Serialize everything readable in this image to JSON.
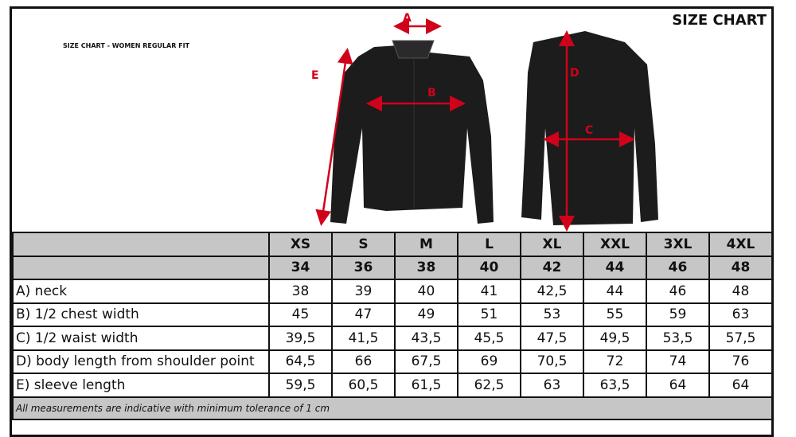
{
  "subtitle": "SIZE CHART - WOMEN REGULAR FIT",
  "title": "SIZE CHART",
  "measure_letters": {
    "a": "A",
    "b": "B",
    "c": "C",
    "d": "D",
    "e": "E"
  },
  "colors": {
    "arrow": "#d0021b",
    "header_bg": "#c6c6c6",
    "shirt": "#1c1c1c"
  },
  "table": {
    "sizes": [
      "XS",
      "S",
      "M",
      "L",
      "XL",
      "XXL",
      "3XL",
      "4XL"
    ],
    "numeric_sizes": [
      "34",
      "36",
      "38",
      "40",
      "42",
      "44",
      "46",
      "48"
    ],
    "rows": [
      {
        "label": "A) neck",
        "values": [
          "38",
          "39",
          "40",
          "41",
          "42,5",
          "44",
          "46",
          "48"
        ]
      },
      {
        "label": "B) 1/2 chest width",
        "values": [
          "45",
          "47",
          "49",
          "51",
          "53",
          "55",
          "59",
          "63"
        ]
      },
      {
        "label": "C) 1/2 waist width",
        "values": [
          "39,5",
          "41,5",
          "43,5",
          "45,5",
          "47,5",
          "49,5",
          "53,5",
          "57,5"
        ]
      },
      {
        "label": "D) body length from shoulder point",
        "values": [
          "64,5",
          "66",
          "67,5",
          "69",
          "70,5",
          "72",
          "74",
          "76"
        ]
      },
      {
        "label": "E) sleeve length",
        "values": [
          "59,5",
          "60,5",
          "61,5",
          "62,5",
          "63",
          "63,5",
          "64",
          "64"
        ]
      }
    ],
    "footnote": "All measurements are indicative with minimum tolerance of 1 cm"
  }
}
